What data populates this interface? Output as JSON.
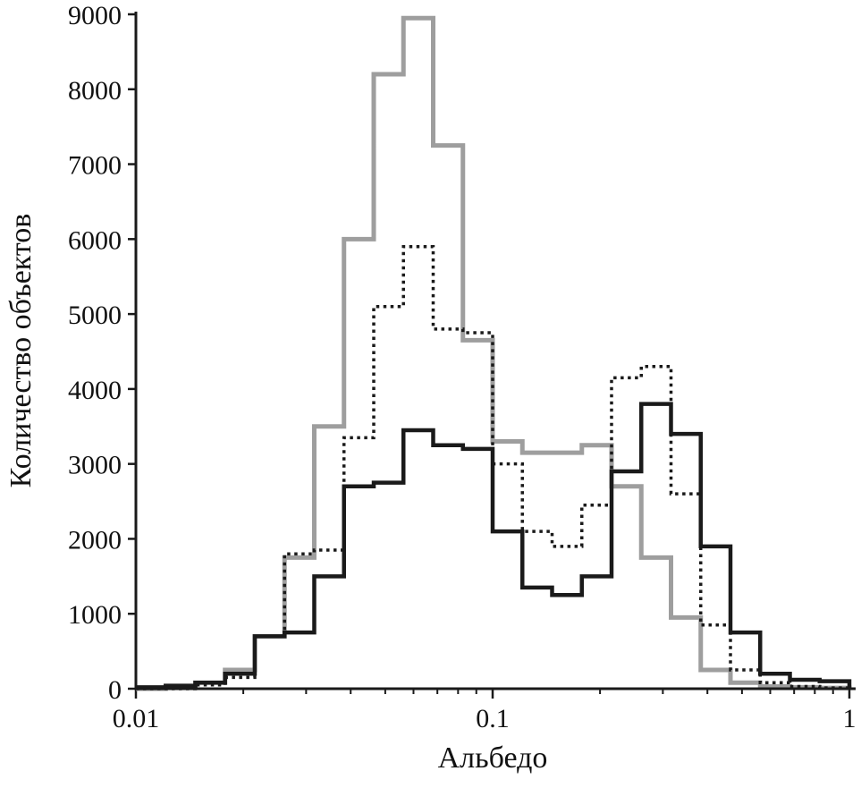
{
  "chart_data": {
    "type": "line",
    "subtype": "step-histogram-outlines",
    "title": "",
    "xlabel": "Альбедо",
    "ylabel": "Количество объектов",
    "x_scale": "log",
    "xlim": [
      0.01,
      1
    ],
    "ylim": [
      0,
      9000
    ],
    "grid": false,
    "legend": false,
    "background_color": "#ffffff",
    "axis_color": "#1a1a1a",
    "y_ticks": [
      0,
      1000,
      2000,
      3000,
      4000,
      5000,
      6000,
      7000,
      8000,
      9000
    ],
    "x_major_ticks": [
      0.01,
      0.1,
      1
    ],
    "x_major_tick_labels": [
      "0.01",
      "0.1",
      "1"
    ],
    "x_minor_ticks": [
      0.02,
      0.03,
      0.04,
      0.05,
      0.06,
      0.07,
      0.08,
      0.09,
      0.2,
      0.3,
      0.4,
      0.5,
      0.6,
      0.7,
      0.8,
      0.9
    ],
    "bin_edges": [
      0.01,
      0.01212,
      0.01468,
      0.01778,
      0.02154,
      0.0261,
      0.03162,
      0.03831,
      0.04642,
      0.05623,
      0.06813,
      0.08254,
      0.1,
      0.12115,
      0.14678,
      0.17783,
      0.21544,
      0.26102,
      0.31623,
      0.38312,
      0.46416,
      0.56234,
      0.68129,
      0.8254,
      1.0
    ],
    "series": [
      {
        "name": "gray-solid",
        "color": "#9e9e9e",
        "dash": "none",
        "width": 5,
        "values": [
          0,
          30,
          80,
          250,
          700,
          1750,
          3500,
          6000,
          8200,
          8950,
          7250,
          4650,
          3300,
          3150,
          3150,
          3250,
          2700,
          1750,
          950,
          250,
          80,
          30,
          20,
          10
        ]
      },
      {
        "name": "black-dotted",
        "color": "#1a1a1a",
        "dash": "3.5 4.5",
        "width": 3.5,
        "values": [
          0,
          0,
          50,
          150,
          700,
          1800,
          1850,
          3350,
          5100,
          5900,
          4800,
          4750,
          3000,
          2100,
          1900,
          2450,
          4150,
          4300,
          2600,
          850,
          250,
          80,
          30,
          10
        ]
      },
      {
        "name": "black-solid",
        "color": "#1a1a1a",
        "dash": "none",
        "width": 4.5,
        "values": [
          20,
          40,
          80,
          200,
          700,
          750,
          1500,
          2700,
          2750,
          3450,
          3250,
          3200,
          2100,
          1350,
          1250,
          1500,
          2900,
          3800,
          3400,
          1900,
          750,
          200,
          120,
          100
        ]
      }
    ]
  }
}
